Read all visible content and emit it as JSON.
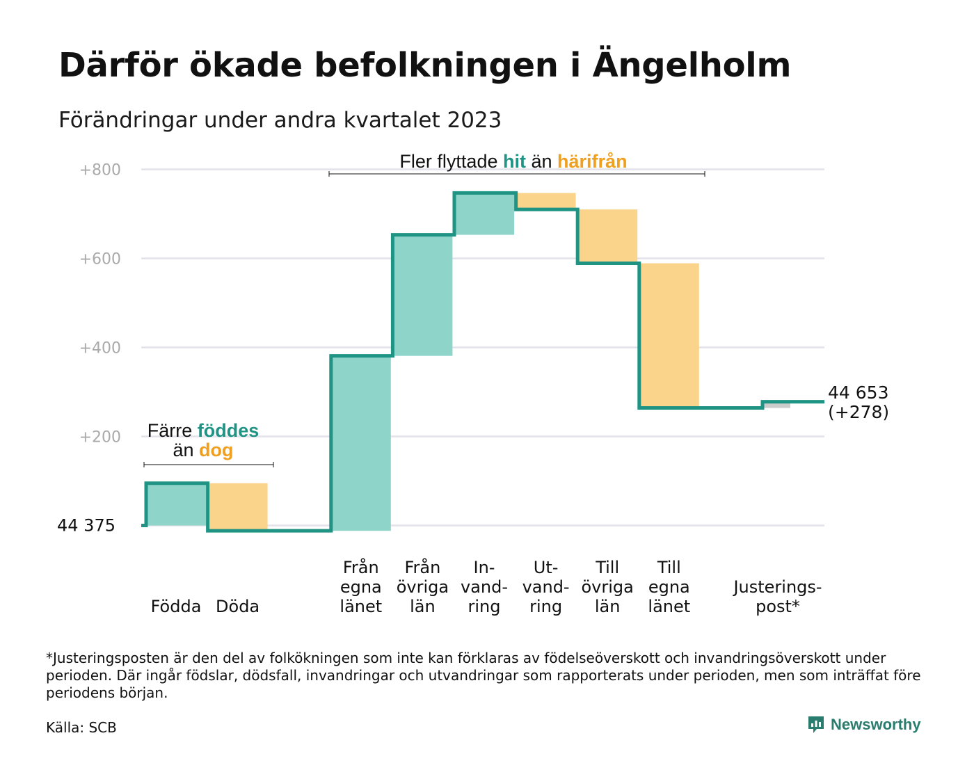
{
  "title": "Därför ökade befolkningen i Ängelholm",
  "subtitle": "Förändringar under andra kvartalet 2023",
  "footnote": "*Justeringsposten är den del av folkökningen som inte kan förklaras av födelseöverskott och invandringsöverskott under perioden. Där ingår födslar, dödsfall, invandringar och utvandringar som rapporterats under perioden, men som inträffat före periodens början.",
  "source": "Källa: SCB",
  "brand": "Newsworthy",
  "colors": {
    "increase": "#8ed4c9",
    "decrease": "#fad48b",
    "adjustment": "#cccccc",
    "line": "#1f9384",
    "hit_text": "#1f9384",
    "harifran_text": "#f0a020",
    "grid": "#e2e2ea",
    "tick_text": "#aaaaaa",
    "logo": "#2a7d6e"
  },
  "chart_data": {
    "type": "waterfall",
    "title": "Därför ökade befolkningen i Ängelholm",
    "subtitle": "Förändringar under andra kvartalet 2023",
    "base_value": 44375,
    "start_label": "44  375",
    "end_label": [
      "44 653",
      "(+278)"
    ],
    "y_ticks": [
      {
        "value": 200,
        "label": "+200"
      },
      {
        "value": 400,
        "label": "+400"
      },
      {
        "value": 600,
        "label": "+600"
      },
      {
        "value": 800,
        "label": "+800"
      }
    ],
    "ylim": [
      -20,
      820
    ],
    "grid": true,
    "steps": [
      {
        "label": [
          "Födda"
        ],
        "delta": 95,
        "cumulative": 95,
        "type": "increase"
      },
      {
        "label": [
          "Döda"
        ],
        "delta": -107,
        "cumulative": -12,
        "type": "decrease"
      },
      {
        "label": [
          ""
        ],
        "delta": 0,
        "cumulative": -12,
        "type": "gap"
      },
      {
        "label": [
          "Från",
          "egna",
          "länet"
        ],
        "delta": 393,
        "cumulative": 381,
        "type": "increase"
      },
      {
        "label": [
          "Från",
          "övriga",
          "län"
        ],
        "delta": 272,
        "cumulative": 653,
        "type": "increase"
      },
      {
        "label": [
          "In-",
          "vand-",
          "ring"
        ],
        "delta": 94,
        "cumulative": 747,
        "type": "increase"
      },
      {
        "label": [
          "Ut-",
          "vand-",
          "ring"
        ],
        "delta": -37,
        "cumulative": 710,
        "type": "decrease"
      },
      {
        "label": [
          "Till",
          "övriga",
          "län"
        ],
        "delta": -121,
        "cumulative": 589,
        "type": "decrease"
      },
      {
        "label": [
          "Till",
          "egna",
          "länet"
        ],
        "delta": -325,
        "cumulative": 264,
        "type": "decrease"
      },
      {
        "label": [
          ""
        ],
        "delta": 0,
        "cumulative": 264,
        "type": "gap"
      },
      {
        "label": [
          "Justerings-",
          "post*"
        ],
        "delta": 14,
        "cumulative": 278,
        "type": "adjustment"
      }
    ],
    "annotations": [
      {
        "group": "births",
        "text": [
          "Färre ",
          "föddes",
          "än ",
          "dog"
        ],
        "note": "Färre föddes än dog"
      },
      {
        "group": "migration",
        "text": [
          "Fler flyttade ",
          "hit",
          " än ",
          "härifrån"
        ],
        "note": "Fler flyttade hit än härifrån"
      }
    ]
  }
}
